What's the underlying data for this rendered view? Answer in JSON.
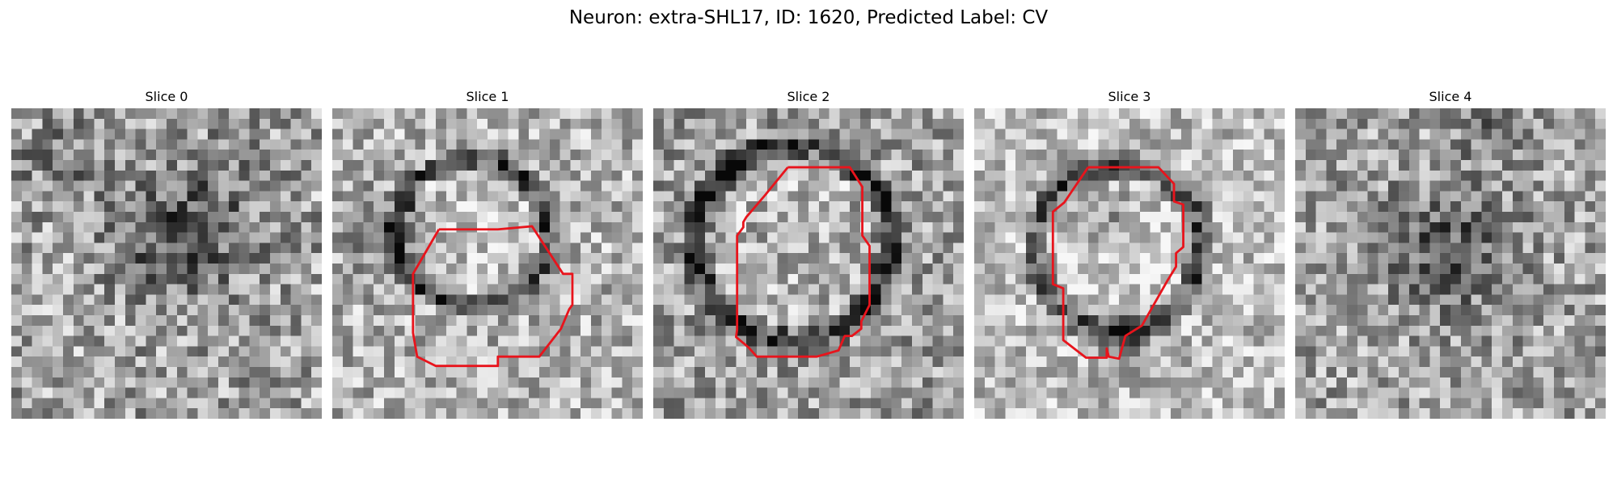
{
  "figure": {
    "title": "Neuron: extra-SHL17, ID: 1620, Predicted Label: CV"
  },
  "panels": [
    {
      "title": "Slice 0",
      "has_contour": false
    },
    {
      "title": "Slice 1",
      "has_contour": true
    },
    {
      "title": "Slice 2",
      "has_contour": true
    },
    {
      "title": "Slice 3",
      "has_contour": true
    },
    {
      "title": "Slice 4",
      "has_contour": false
    }
  ],
  "colors": {
    "contour": "#e8141c",
    "background": "#ffffff"
  }
}
